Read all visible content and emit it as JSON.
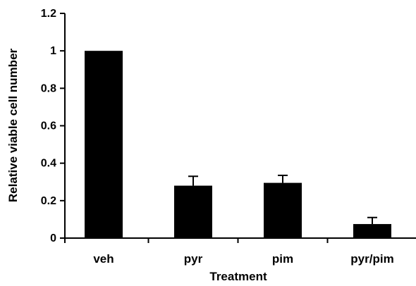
{
  "chart_data": {
    "type": "bar",
    "categories": [
      "veh",
      "pyr",
      "pim",
      "pyr/pim"
    ],
    "values": [
      1.0,
      0.28,
      0.295,
      0.075
    ],
    "error_bars": {
      "upper": [
        0.0,
        0.05,
        0.04,
        0.035
      ]
    },
    "xlabel": "Treatment",
    "ylabel": "Relative viable cell number",
    "ylim": [
      0,
      1.2
    ],
    "yticks": [
      0,
      0.2,
      0.4,
      0.6,
      0.8,
      1,
      1.2
    ],
    "ytick_labels": [
      "0",
      "0.2",
      "0.4",
      "0.6",
      "0.8",
      "1",
      "1.2"
    ],
    "grid": false,
    "legend": "none",
    "bar_color": "#000000"
  }
}
